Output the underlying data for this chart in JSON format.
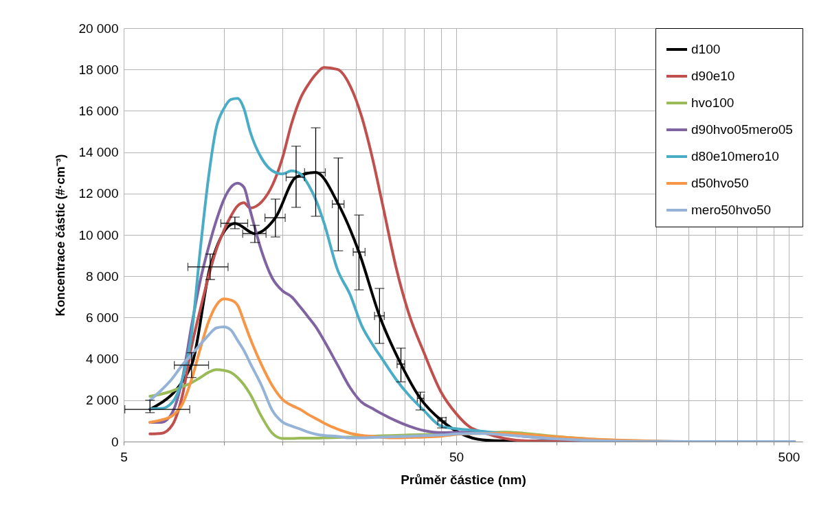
{
  "chart_data": {
    "type": "line",
    "xlabel": "Průměr částice (nm)",
    "ylabel": "Koncentrace částic (#·cm⁻³)",
    "log": "x",
    "grid": true,
    "legend": "top right",
    "xlim": [
      5,
      550
    ],
    "xticks": [
      5,
      {
        "value": 10,
        "label": null
      },
      {
        "value": 15,
        "label": null
      },
      {
        "value": 20,
        "label": null
      },
      {
        "value": 25,
        "label": null
      },
      {
        "value": 30,
        "label": null
      },
      {
        "value": 35,
        "label": null
      },
      {
        "value": 40,
        "label": null
      },
      {
        "value": 45,
        "label": null
      },
      50,
      {
        "value": 100,
        "label": null
      },
      {
        "value": 150,
        "label": null
      },
      {
        "value": 200,
        "label": null
      },
      {
        "value": 250,
        "label": null
      },
      {
        "value": 300,
        "label": null
      },
      {
        "value": 350,
        "label": null
      },
      {
        "value": 400,
        "label": null
      },
      {
        "value": 450,
        "label": null
      },
      500
    ],
    "ylim": [
      0,
      20000
    ],
    "yticks": [
      0,
      {
        "value": 2000,
        "label": "2 000"
      },
      {
        "value": 4000,
        "label": "4 000"
      },
      {
        "value": 6000,
        "label": "6 000"
      },
      {
        "value": 8000,
        "label": "8 000"
      },
      {
        "value": 10000,
        "label": "10 000"
      },
      {
        "value": 12000,
        "label": "12 000"
      },
      {
        "value": 14000,
        "label": "14 000"
      },
      {
        "value": 16000,
        "label": "16 000"
      },
      {
        "value": 18000,
        "label": "18 000"
      },
      {
        "value": 20000,
        "label": "20 000"
      }
    ],
    "x": [
      6,
      6.5,
      7,
      7.5,
      8,
      8.5,
      9,
      9.5,
      10,
      10.5,
      11,
      11.5,
      12,
      13,
      14,
      15,
      16,
      17,
      18,
      19,
      20,
      22,
      24,
      26,
      28,
      30,
      33,
      36,
      40,
      45,
      50,
      55,
      60,
      70,
      80,
      100,
      130,
      170,
      250,
      520
    ],
    "series": [
      {
        "name": "d100",
        "color": "#000000",
        "x": [
          6.0,
          8.0,
          9.1,
          10.8,
          12.4,
          14.3,
          16.5,
          18.9,
          22.1,
          25.5,
          29.4,
          34.1,
          39.0,
          45.3,
          60,
          70,
          124,
          143,
          164,
          190,
          220,
          252,
          292,
          339,
          390,
          450,
          517
        ],
        "values": [
          1560,
          3700,
          8450,
          10560,
          10060,
          10830,
          12790,
          13020,
          11490,
          9170,
          6080,
          3750,
          2090,
          1000,
          80,
          30,
          0,
          0,
          0,
          0,
          0,
          0,
          0,
          0,
          0,
          0,
          0
        ],
        "errors": [
          [
            1400,
            2000
          ],
          [
            3100,
            4300
          ],
          [
            7840,
            9070
          ],
          [
            10300,
            10860
          ],
          [
            9630,
            10460
          ],
          [
            9900,
            11730
          ],
          [
            11330,
            14290
          ],
          [
            10900,
            15180
          ],
          [
            9230,
            13720
          ],
          [
            7340,
            10960
          ],
          [
            4750,
            7410
          ],
          [
            2890,
            4520
          ],
          [
            1530,
            2390
          ],
          [
            660,
            1160
          ],
          null,
          null,
          null,
          null,
          null,
          null,
          null,
          null,
          null,
          null,
          null,
          null,
          null
        ],
        "xerrors": [
          [
            5.04,
            7.9
          ],
          [
            7.1,
            9.0
          ],
          [
            7.8,
            10.3
          ],
          [
            9.8,
            11.8
          ],
          [
            11.4,
            13.4
          ],
          [
            13.3,
            15.3
          ],
          [
            15.4,
            17.5
          ],
          [
            17.5,
            20.2
          ],
          [
            21.2,
            23.0
          ],
          [
            24.5,
            26.6
          ],
          [
            28.4,
            30.4
          ],
          [
            33.2,
            35.0
          ],
          [
            38.2,
            40.0
          ],
          [
            44.0,
            46.6
          ],
          null,
          null,
          null,
          null,
          null,
          null,
          null,
          null,
          null,
          null,
          null,
          null,
          null
        ]
      },
      {
        "name": "d90e10",
        "color": "#c0504d",
        "values": [
          370,
          400,
          800,
          2200,
          4600,
          6400,
          8000,
          9300,
          10200,
          10900,
          11400,
          11550,
          11300,
          11600,
          12400,
          13700,
          15400,
          16600,
          17300,
          17800,
          18100,
          18000,
          17200,
          15700,
          13700,
          11500,
          8400,
          6200,
          4300,
          2400,
          1350,
          700,
          450,
          150,
          40,
          0,
          0,
          0,
          0,
          0
        ]
      },
      {
        "name": "hvo100",
        "color": "#9bbb59",
        "values": [
          2190,
          2300,
          2450,
          2650,
          2850,
          3100,
          3350,
          3480,
          3450,
          3350,
          3100,
          2750,
          2300,
          1200,
          400,
          150,
          150,
          170,
          170,
          170,
          180,
          200,
          220,
          240,
          260,
          280,
          300,
          320,
          340,
          370,
          400,
          420,
          440,
          460,
          400,
          250,
          110,
          40,
          0,
          0
        ]
      },
      {
        "name": "d90hvo05mero05",
        "color": "#8064a2",
        "values": [
          930,
          930,
          1400,
          3000,
          5600,
          7800,
          9400,
          10700,
          11700,
          12300,
          12500,
          12300,
          11200,
          9200,
          7900,
          7300,
          7000,
          6500,
          6000,
          5500,
          4900,
          3700,
          2600,
          1900,
          1600,
          1330,
          1000,
          750,
          530,
          430,
          450,
          450,
          420,
          350,
          250,
          130,
          50,
          10,
          0,
          0
        ]
      },
      {
        "name": "d80e10mero10",
        "color": "#4bacc6",
        "values": [
          1590,
          1600,
          1900,
          3000,
          5200,
          9300,
          12800,
          15200,
          16100,
          16550,
          16600,
          16100,
          15000,
          13700,
          13100,
          12950,
          13100,
          12950,
          12400,
          11620,
          10600,
          8300,
          7100,
          5600,
          4700,
          3980,
          3000,
          2250,
          1500,
          750,
          620,
          560,
          500,
          380,
          280,
          170,
          60,
          10,
          0,
          0
        ]
      },
      {
        "name": "d50hvo50",
        "color": "#f79646",
        "values": [
          930,
          1050,
          1250,
          1800,
          3000,
          4500,
          5800,
          6600,
          6900,
          6850,
          6600,
          5800,
          5000,
          3700,
          2700,
          2050,
          1750,
          1550,
          1300,
          1100,
          900,
          600,
          400,
          300,
          250,
          200,
          180,
          200,
          220,
          260,
          350,
          380,
          400,
          400,
          350,
          230,
          120,
          50,
          0,
          0
        ]
      },
      {
        "name": "mero50hvo50",
        "color": "#95b3d7",
        "values": [
          2000,
          2500,
          3050,
          3700,
          4200,
          4700,
          5150,
          5500,
          5550,
          5400,
          4900,
          4400,
          3800,
          2700,
          1500,
          950,
          750,
          600,
          450,
          350,
          300,
          250,
          180,
          180,
          200,
          220,
          240,
          260,
          290,
          320,
          370,
          390,
          390,
          320,
          250,
          130,
          50,
          10,
          0,
          0
        ]
      }
    ]
  }
}
